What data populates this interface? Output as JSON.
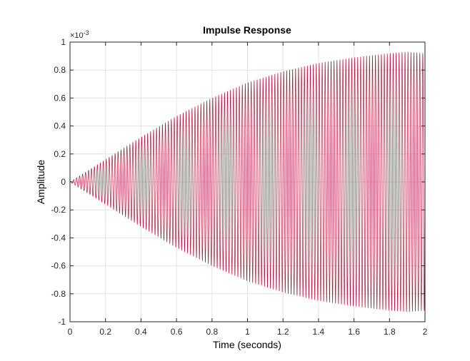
{
  "chart_data": {
    "type": "line",
    "title": "Impulse Response",
    "xlabel": "Time (seconds)",
    "ylabel": "Amplitude",
    "xlim": [
      0,
      2
    ],
    "ylim": [
      -1,
      1
    ],
    "y_scale_multiplier": "×10",
    "y_scale_exponent": "-3",
    "x_ticks": [
      0,
      0.2,
      0.4,
      0.6,
      0.8,
      1,
      1.2,
      1.4,
      1.6,
      1.8,
      2
    ],
    "x_tick_labels": [
      "0",
      "0.2",
      "0.4",
      "0.6",
      "0.8",
      "1",
      "1.2",
      "1.4",
      "1.6",
      "1.8",
      "2"
    ],
    "y_ticks": [
      -1,
      -0.8,
      -0.6,
      -0.4,
      -0.2,
      0,
      0.2,
      0.4,
      0.6,
      0.8,
      1
    ],
    "y_tick_labels": [
      "-1",
      "-0.8",
      "-0.6",
      "-0.4",
      "-0.2",
      "0",
      "0.2",
      "0.4",
      "0.6",
      "0.8",
      "1"
    ],
    "grid": true,
    "series": [
      {
        "color": "#b5173c",
        "envelope_t": [
          0,
          0.2,
          0.4,
          0.6,
          0.8,
          1.0,
          1.2,
          1.4,
          1.6,
          1.8,
          1.9,
          2.0
        ],
        "envelope_amp": [
          0,
          0.16,
          0.32,
          0.47,
          0.6,
          0.71,
          0.79,
          0.85,
          0.89,
          0.92,
          0.93,
          0.92
        ],
        "oscillation_hz": 60
      }
    ]
  }
}
